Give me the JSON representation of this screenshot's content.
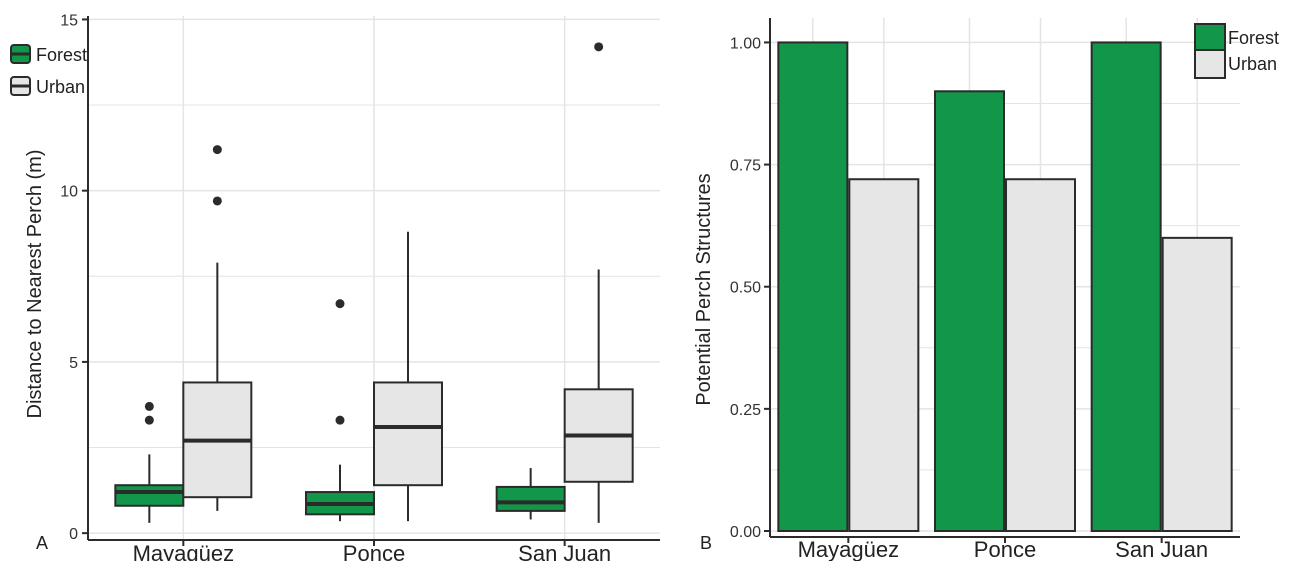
{
  "colors": {
    "forest": "#12964a",
    "urban": "#e6e6e6",
    "grid": "#e4e4e4",
    "stroke": "#2b2b2b"
  },
  "chart_data": [
    {
      "panel": "A",
      "type": "box",
      "ylabel": "Distance to Nearest Perch (m)",
      "categories": [
        "Mayagüez",
        "Ponce",
        "San Juan"
      ],
      "y_ticks": [
        0,
        5,
        10,
        15
      ],
      "ylim": [
        -0.2,
        15.1
      ],
      "legend": {
        "placement": "top-left",
        "entries": [
          "Forest",
          "Urban"
        ]
      },
      "series": [
        {
          "name": "Forest",
          "color_key": "forest",
          "boxes": [
            {
              "min": 0.3,
              "q1": 0.8,
              "median": 1.2,
              "q3": 1.4,
              "max": 2.3,
              "outliers": [
                3.3,
                3.7
              ]
            },
            {
              "min": 0.35,
              "q1": 0.55,
              "median": 0.85,
              "q3": 1.2,
              "max": 2.0,
              "outliers": [
                3.3,
                6.7
              ]
            },
            {
              "min": 0.4,
              "q1": 0.65,
              "median": 0.9,
              "q3": 1.35,
              "max": 1.9,
              "outliers": []
            }
          ]
        },
        {
          "name": "Urban",
          "color_key": "urban",
          "boxes": [
            {
              "min": 0.65,
              "q1": 1.05,
              "median": 2.7,
              "q3": 4.4,
              "max": 7.9,
              "outliers": [
                9.7,
                11.2
              ]
            },
            {
              "min": 0.35,
              "q1": 1.4,
              "median": 3.1,
              "q3": 4.4,
              "max": 8.8,
              "outliers": []
            },
            {
              "min": 0.3,
              "q1": 1.5,
              "median": 2.85,
              "q3": 4.2,
              "max": 7.7,
              "outliers": [
                14.2
              ]
            }
          ]
        }
      ]
    },
    {
      "panel": "B",
      "type": "bar",
      "ylabel": "Potential Perch Structures",
      "categories": [
        "Mayagüez",
        "Ponce",
        "San Juan"
      ],
      "y_ticks": [
        "0.00",
        "0.25",
        "0.50",
        "0.75",
        "1.00"
      ],
      "ylim": [
        0,
        1.05
      ],
      "legend": {
        "placement": "top-right",
        "entries": [
          "Forest",
          "Urban"
        ]
      },
      "series": [
        {
          "name": "Forest",
          "color_key": "forest",
          "values": [
            1.0,
            0.9,
            1.0
          ]
        },
        {
          "name": "Urban",
          "color_key": "urban",
          "values": [
            0.72,
            0.72,
            0.6
          ]
        }
      ]
    }
  ]
}
